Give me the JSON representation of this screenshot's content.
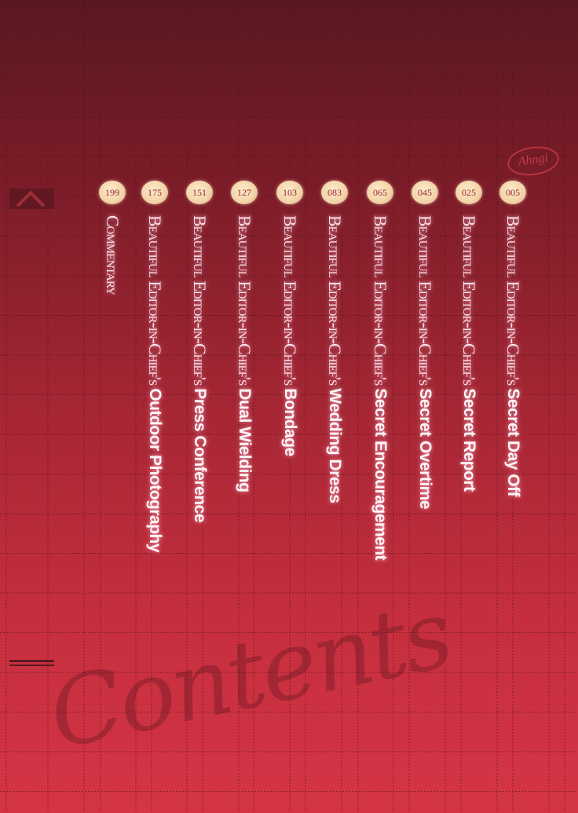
{
  "stamp_text": "Ahngi",
  "watermark": "Contents",
  "colors": {
    "background_top": "#5a1820",
    "background_bottom": "#d43545",
    "badge": "#f3d3a6",
    "title_text": "#fbe3ea"
  },
  "entries": [
    {
      "page": "005",
      "prefix": "Beautiful Editor-in-Chief's",
      "title": "Secret Day Off"
    },
    {
      "page": "025",
      "prefix": "Beautiful Editor-in-Chief's",
      "title": "Secret Report"
    },
    {
      "page": "045",
      "prefix": "Beautiful Editor-in-Chief's",
      "title": "Secret Overtime"
    },
    {
      "page": "065",
      "prefix": "Beautiful Editor-in-Chief's",
      "title": "Secret Encouragement"
    },
    {
      "page": "083",
      "prefix": "Beautiful Editor-in-Chief's",
      "title": "Wedding Dress"
    },
    {
      "page": "103",
      "prefix": "Beautiful Editor-in-Chief's",
      "title": "Bondage"
    },
    {
      "page": "127",
      "prefix": "Beautiful Editor-in-Chief's",
      "title": "Dual Wielding"
    },
    {
      "page": "151",
      "prefix": "Beautiful Editor-in-Chief's",
      "title": "Press Conference"
    },
    {
      "page": "175",
      "prefix": "Beautiful Editor-in-Chief's",
      "title": "Outdoor Photography"
    },
    {
      "page": "199",
      "prefix": "Commentary",
      "title": ""
    }
  ]
}
